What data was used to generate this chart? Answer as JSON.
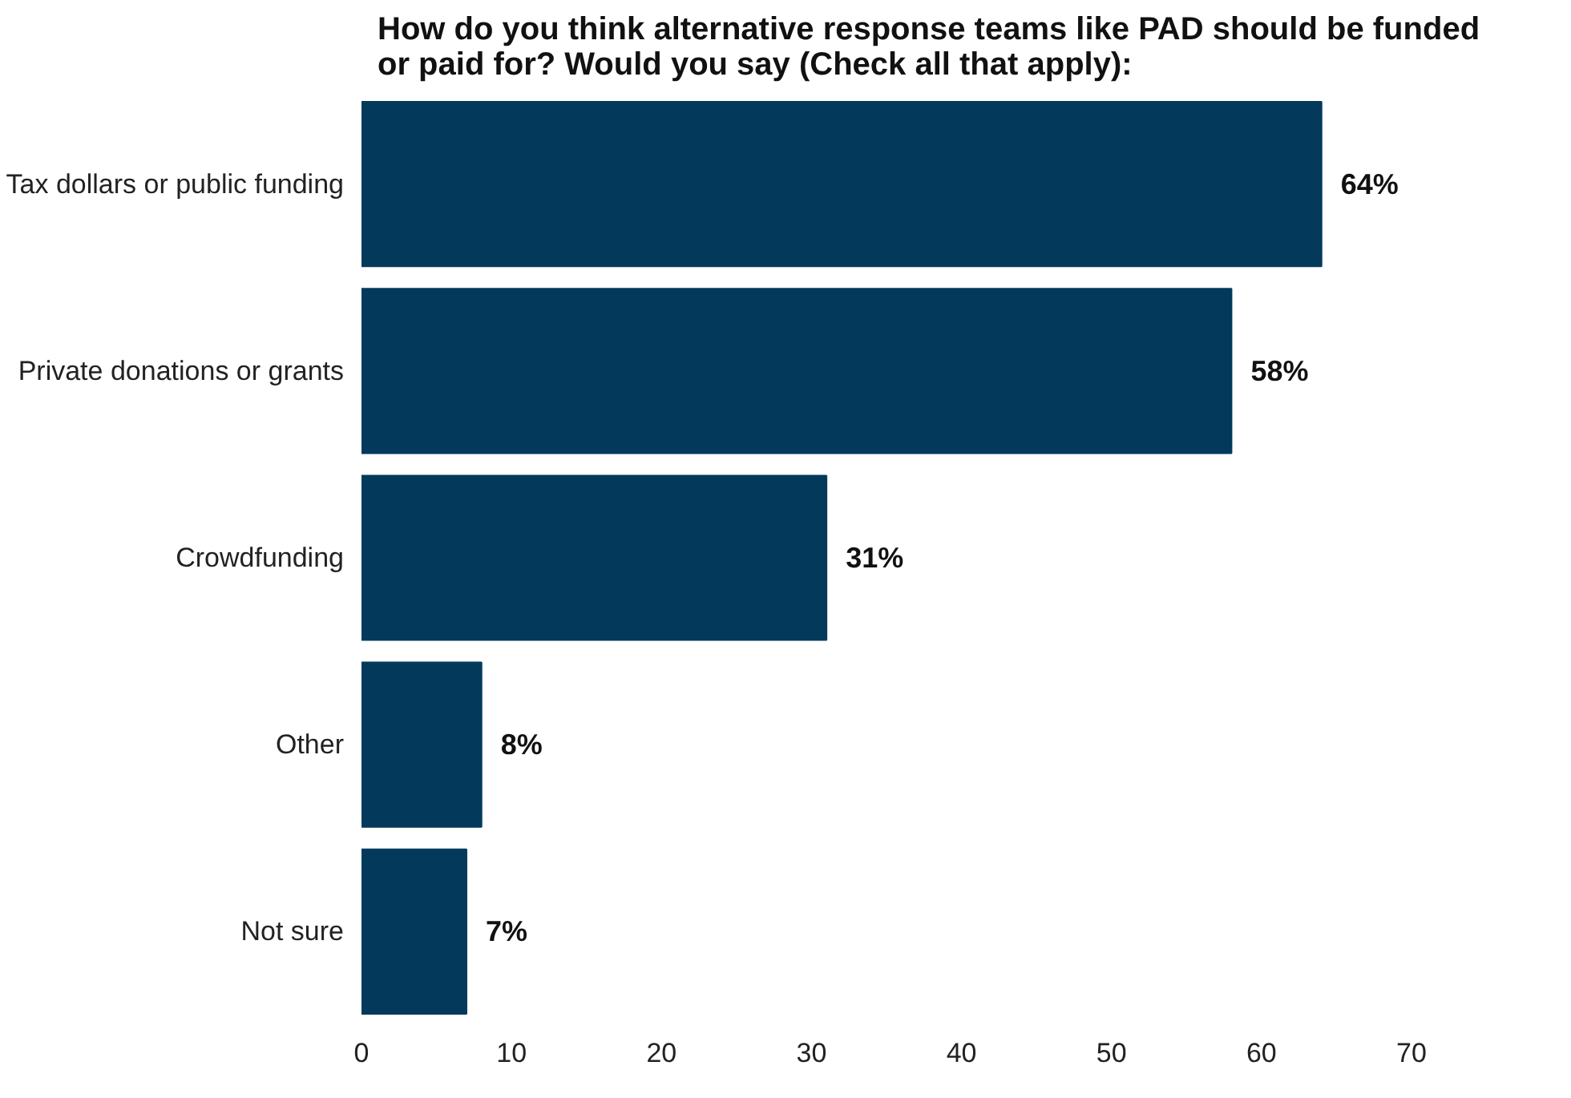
{
  "chart_data": {
    "type": "bar",
    "orientation": "horizontal",
    "title": "How do you think alternative response teams like PAD should be funded or paid for? Would you say (Check all that apply):",
    "categories": [
      "Tax dollars or public funding",
      "Private donations or grants",
      "Crowdfunding",
      "Other",
      "Not sure"
    ],
    "values": [
      64,
      58,
      31,
      8,
      7
    ],
    "value_labels": [
      "64%",
      "58%",
      "31%",
      "8%",
      "7%"
    ],
    "color": "#033a5c",
    "xlim": [
      0,
      70
    ],
    "xticks": [
      0,
      10,
      20,
      30,
      40,
      50,
      60,
      70
    ],
    "grid": false
  }
}
